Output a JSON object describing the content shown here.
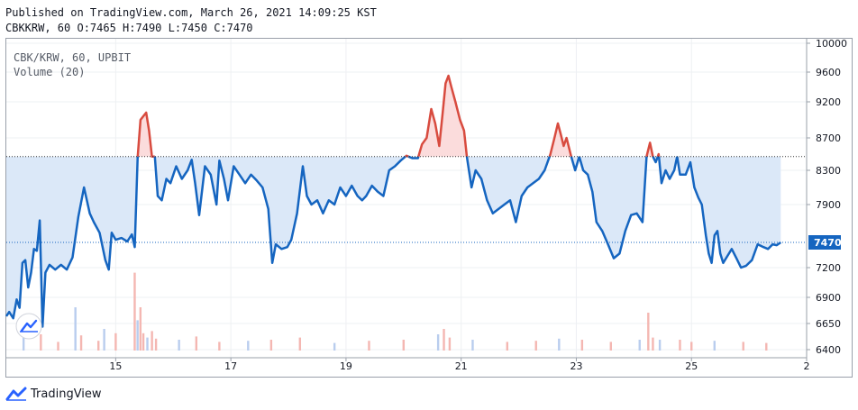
{
  "header": {
    "published": "Published on TradingView.com, March 26, 2021 14:09:25 KST",
    "ohlc": "CBKKRW, 60 O:7465 H:7490 L:7450 C:7470"
  },
  "legend": {
    "symbol": "CBK/KRW, 60, UPBIT",
    "volume": "Volume (20)"
  },
  "footer": {
    "brand": "TradingView"
  },
  "colors": {
    "line": "#1565c0",
    "above": "#d84b3f",
    "fill_below": "#dbe8f8",
    "fill_above": "#fbdcdc",
    "grid": "#eef0f3",
    "current_tag": "#1565c0",
    "vol_up": "#f4b7b2",
    "vol_down": "#b9cdee"
  },
  "chart_data": {
    "type": "line",
    "symbol": "CBK/KRW",
    "interval": "60",
    "exchange": "UPBIT",
    "y_ticks": [
      6400,
      6650,
      6900,
      7200,
      7470,
      7900,
      8300,
      8700,
      9200,
      9600,
      10000
    ],
    "x_ticks": [
      {
        "label": "15",
        "t": 15
      },
      {
        "label": "17",
        "t": 17
      },
      {
        "label": "19",
        "t": 19
      },
      {
        "label": "21",
        "t": 21
      },
      {
        "label": "23",
        "t": 23
      },
      {
        "label": "25",
        "t": 25
      },
      {
        "label": "2",
        "t": 27
      }
    ],
    "x_range": [
      13.1,
      27.0
    ],
    "current_price": 7470,
    "baseline": 8470,
    "series": [
      {
        "values": [
          [
            13.1,
            6720
          ],
          [
            13.15,
            6760
          ],
          [
            13.22,
            6700
          ],
          [
            13.28,
            6880
          ],
          [
            13.33,
            6800
          ],
          [
            13.38,
            7250
          ],
          [
            13.43,
            7280
          ],
          [
            13.48,
            7000
          ],
          [
            13.53,
            7150
          ],
          [
            13.58,
            7400
          ],
          [
            13.63,
            7380
          ],
          [
            13.68,
            7720
          ],
          [
            13.73,
            6620
          ],
          [
            13.78,
            7150
          ],
          [
            13.85,
            7230
          ],
          [
            13.95,
            7180
          ],
          [
            14.05,
            7230
          ],
          [
            14.15,
            7180
          ],
          [
            14.25,
            7310
          ],
          [
            14.35,
            7760
          ],
          [
            14.45,
            8100
          ],
          [
            14.55,
            7800
          ],
          [
            14.62,
            7700
          ],
          [
            14.72,
            7580
          ],
          [
            14.82,
            7280
          ],
          [
            14.88,
            7180
          ],
          [
            14.93,
            7580
          ],
          [
            15.0,
            7500
          ],
          [
            15.1,
            7520
          ],
          [
            15.2,
            7480
          ],
          [
            15.28,
            7560
          ],
          [
            15.33,
            7420
          ],
          [
            15.38,
            8450
          ],
          [
            15.43,
            8950
          ],
          [
            15.48,
            9000
          ],
          [
            15.53,
            9050
          ],
          [
            15.58,
            8800
          ],
          [
            15.63,
            8470
          ],
          [
            15.68,
            8470
          ],
          [
            15.73,
            8000
          ],
          [
            15.8,
            7950
          ],
          [
            15.88,
            8200
          ],
          [
            15.95,
            8150
          ],
          [
            16.05,
            8350
          ],
          [
            16.15,
            8200
          ],
          [
            16.25,
            8300
          ],
          [
            16.32,
            8430
          ],
          [
            16.38,
            8150
          ],
          [
            16.45,
            7780
          ],
          [
            16.55,
            8350
          ],
          [
            16.65,
            8250
          ],
          [
            16.75,
            7900
          ],
          [
            16.8,
            8420
          ],
          [
            16.88,
            8200
          ],
          [
            16.95,
            7950
          ],
          [
            17.05,
            8350
          ],
          [
            17.15,
            8250
          ],
          [
            17.25,
            8150
          ],
          [
            17.35,
            8250
          ],
          [
            17.45,
            8180
          ],
          [
            17.55,
            8100
          ],
          [
            17.65,
            7850
          ],
          [
            17.72,
            7250
          ],
          [
            17.78,
            7450
          ],
          [
            17.88,
            7400
          ],
          [
            17.98,
            7420
          ],
          [
            18.05,
            7500
          ],
          [
            18.15,
            7800
          ],
          [
            18.25,
            8350
          ],
          [
            18.32,
            8000
          ],
          [
            18.4,
            7900
          ],
          [
            18.5,
            7950
          ],
          [
            18.6,
            7800
          ],
          [
            18.7,
            7950
          ],
          [
            18.8,
            7900
          ],
          [
            18.9,
            8100
          ],
          [
            19.0,
            8000
          ],
          [
            19.1,
            8120
          ],
          [
            19.2,
            8000
          ],
          [
            19.28,
            7950
          ],
          [
            19.35,
            8000
          ],
          [
            19.45,
            8120
          ],
          [
            19.55,
            8050
          ],
          [
            19.65,
            8000
          ],
          [
            19.75,
            8300
          ],
          [
            19.85,
            8350
          ],
          [
            19.95,
            8420
          ],
          [
            20.05,
            8480
          ],
          [
            20.15,
            8450
          ],
          [
            20.25,
            8450
          ],
          [
            20.32,
            8620
          ],
          [
            20.4,
            8700
          ],
          [
            20.48,
            9100
          ],
          [
            20.55,
            8900
          ],
          [
            20.62,
            8600
          ],
          [
            20.68,
            9050
          ],
          [
            20.73,
            9450
          ],
          [
            20.78,
            9550
          ],
          [
            20.83,
            9400
          ],
          [
            20.9,
            9200
          ],
          [
            20.98,
            8950
          ],
          [
            21.05,
            8800
          ],
          [
            21.1,
            8460
          ],
          [
            21.18,
            8100
          ],
          [
            21.25,
            8300
          ],
          [
            21.35,
            8200
          ],
          [
            21.45,
            7950
          ],
          [
            21.55,
            7800
          ],
          [
            21.65,
            7850
          ],
          [
            21.75,
            7900
          ],
          [
            21.85,
            7950
          ],
          [
            21.95,
            7700
          ],
          [
            22.05,
            8000
          ],
          [
            22.15,
            8100
          ],
          [
            22.25,
            8150
          ],
          [
            22.35,
            8200
          ],
          [
            22.45,
            8300
          ],
          [
            22.55,
            8500
          ],
          [
            22.62,
            8700
          ],
          [
            22.68,
            8900
          ],
          [
            22.73,
            8750
          ],
          [
            22.78,
            8600
          ],
          [
            22.83,
            8700
          ],
          [
            22.9,
            8500
          ],
          [
            22.98,
            8300
          ],
          [
            23.05,
            8470
          ],
          [
            23.12,
            8300
          ],
          [
            23.2,
            8250
          ],
          [
            23.28,
            8050
          ],
          [
            23.35,
            7700
          ],
          [
            23.45,
            7600
          ],
          [
            23.55,
            7450
          ],
          [
            23.65,
            7300
          ],
          [
            23.75,
            7350
          ],
          [
            23.85,
            7600
          ],
          [
            23.95,
            7780
          ],
          [
            24.05,
            7800
          ],
          [
            24.15,
            7700
          ],
          [
            24.22,
            8470
          ],
          [
            24.28,
            8640
          ],
          [
            24.33,
            8470
          ],
          [
            24.38,
            8400
          ],
          [
            24.43,
            8500
          ],
          [
            24.48,
            8150
          ],
          [
            24.55,
            8300
          ],
          [
            24.62,
            8200
          ],
          [
            24.7,
            8300
          ],
          [
            24.75,
            8470
          ],
          [
            24.8,
            8250
          ],
          [
            24.9,
            8250
          ],
          [
            24.98,
            8400
          ],
          [
            25.05,
            8100
          ],
          [
            25.12,
            7980
          ],
          [
            25.18,
            7900
          ],
          [
            25.25,
            7550
          ],
          [
            25.3,
            7350
          ],
          [
            25.35,
            7250
          ],
          [
            25.4,
            7550
          ],
          [
            25.45,
            7600
          ],
          [
            25.5,
            7350
          ],
          [
            25.55,
            7250
          ],
          [
            25.62,
            7320
          ],
          [
            25.7,
            7400
          ],
          [
            25.78,
            7300
          ],
          [
            25.86,
            7200
          ],
          [
            25.95,
            7220
          ],
          [
            26.05,
            7280
          ],
          [
            26.15,
            7450
          ],
          [
            26.25,
            7420
          ],
          [
            26.33,
            7400
          ],
          [
            26.41,
            7450
          ],
          [
            26.48,
            7440
          ],
          [
            26.55,
            7470
          ]
        ]
      }
    ],
    "volume": [
      [
        13.4,
        1.2
      ],
      [
        13.7,
        1.5
      ],
      [
        14.0,
        0.8
      ],
      [
        14.3,
        4.0
      ],
      [
        14.4,
        1.4
      ],
      [
        14.7,
        0.9
      ],
      [
        14.8,
        2.0
      ],
      [
        15.0,
        1.6
      ],
      [
        15.33,
        7.2
      ],
      [
        15.38,
        2.8
      ],
      [
        15.43,
        4.0
      ],
      [
        15.48,
        1.6
      ],
      [
        15.55,
        1.2
      ],
      [
        15.63,
        1.8
      ],
      [
        15.7,
        1.1
      ],
      [
        16.1,
        1.0
      ],
      [
        16.4,
        1.3
      ],
      [
        16.8,
        0.8
      ],
      [
        17.3,
        0.9
      ],
      [
        17.7,
        1.0
      ],
      [
        18.2,
        1.2
      ],
      [
        18.8,
        0.7
      ],
      [
        19.4,
        0.9
      ],
      [
        20.0,
        1.0
      ],
      [
        20.6,
        1.5
      ],
      [
        20.7,
        2.0
      ],
      [
        20.8,
        1.2
      ],
      [
        21.2,
        1.0
      ],
      [
        21.8,
        0.8
      ],
      [
        22.3,
        0.9
      ],
      [
        22.7,
        1.1
      ],
      [
        23.1,
        1.0
      ],
      [
        23.6,
        0.8
      ],
      [
        24.1,
        1.0
      ],
      [
        24.25,
        3.5
      ],
      [
        24.33,
        1.2
      ],
      [
        24.45,
        1.0
      ],
      [
        24.8,
        1.0
      ],
      [
        25.0,
        0.8
      ],
      [
        25.4,
        0.9
      ],
      [
        25.9,
        0.8
      ],
      [
        26.3,
        0.7
      ]
    ]
  }
}
